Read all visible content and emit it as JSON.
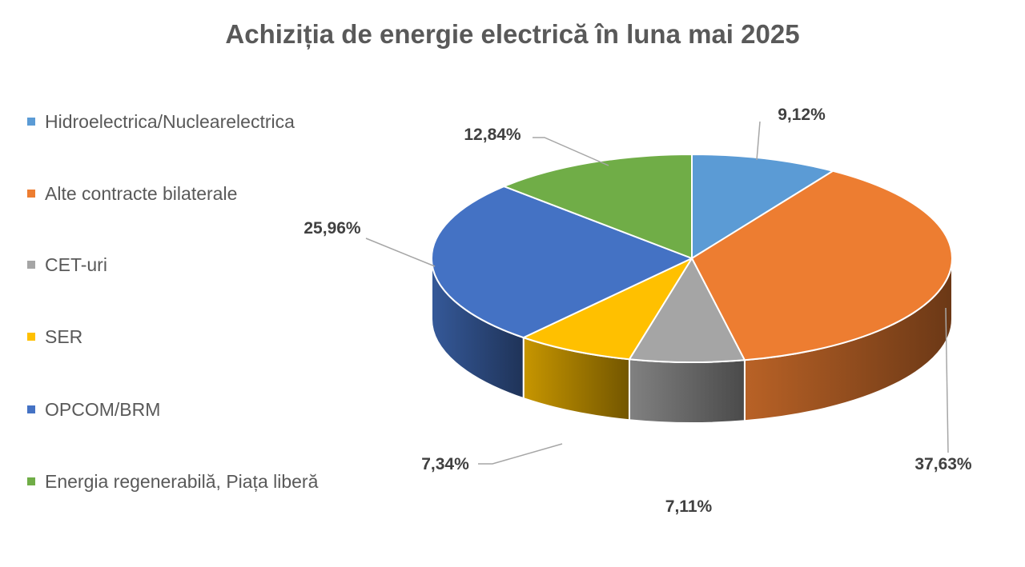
{
  "chart_data": {
    "type": "pie",
    "title": "Achiziția de energie electrică în luna mai 2025",
    "legend_position": "left",
    "categories": [
      "Hidroelectrica/Nuclearelectrica",
      "Alte contracte bilaterale",
      "CET-uri",
      "SER",
      "OPCOM/BRM",
      "Energia regenerabilă, Piața liberă"
    ],
    "values": [
      9.12,
      37.63,
      7.11,
      7.34,
      25.96,
      12.84
    ],
    "labels": [
      "9,12%",
      "37,63%",
      "7,11%",
      "7,34%",
      "25,96%",
      "12,84%"
    ],
    "colors": [
      "#5B9BD5",
      "#ED7D31",
      "#A5A5A5",
      "#FFC000",
      "#4472C4",
      "#70AD47"
    ],
    "style": "3d"
  }
}
